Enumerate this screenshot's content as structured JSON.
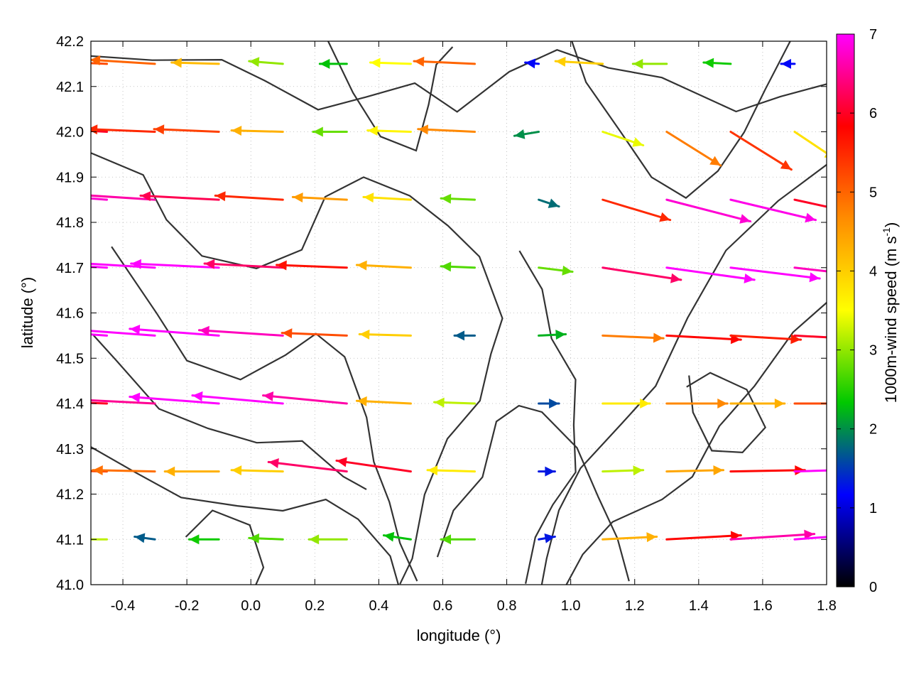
{
  "chart_data": {
    "type": "quiver",
    "xlabel": "longitude (°)",
    "ylabel": "latitude (°)",
    "xlim": [
      -0.5,
      1.8
    ],
    "ylim": [
      41.0,
      42.2
    ],
    "xticks": [
      "-0.4",
      "-0.2",
      "0.0",
      "0.2",
      "0.4",
      "0.6",
      "0.8",
      "1.0",
      "1.2",
      "1.4",
      "1.6",
      "1.8"
    ],
    "xtick_values": [
      -0.4,
      -0.2,
      0.0,
      0.2,
      0.4,
      0.6,
      0.8,
      1.0,
      1.2,
      1.4,
      1.6,
      1.8
    ],
    "yticks": [
      "41.0",
      "41.1",
      "41.2",
      "41.3",
      "41.4",
      "41.5",
      "41.6",
      "41.7",
      "41.8",
      "41.9",
      "42.0",
      "42.1",
      "42.2"
    ],
    "ytick_values": [
      41.0,
      41.1,
      41.2,
      41.3,
      41.4,
      41.5,
      41.6,
      41.7,
      41.8,
      41.9,
      42.0,
      42.1,
      42.2
    ],
    "grid": true,
    "colorbar": {
      "label_main": "1000m-wind speed (m s",
      "label_sup": "-1",
      "label_close": ")",
      "range": [
        0,
        7
      ],
      "ticks": [
        "0",
        "1",
        "2",
        "3",
        "4",
        "5",
        "6",
        "7"
      ],
      "tick_values": [
        0,
        1,
        2,
        3,
        4,
        5,
        6,
        7
      ],
      "colors": [
        "#000000",
        "#0000ff",
        "#00c800",
        "#ffff00",
        "#ff8c00",
        "#ff0000",
        "#ff00ff"
      ]
    },
    "vectors": [
      {
        "lon": -0.45,
        "lat": 42.15,
        "u": -4.5,
        "v": 0.2,
        "speed": 5.2
      },
      {
        "lon": -0.3,
        "lat": 42.15,
        "u": -4.8,
        "v": 0.3,
        "speed": 5.0
      },
      {
        "lon": -0.1,
        "lat": 42.15,
        "u": -3.5,
        "v": 0.1,
        "speed": 4.2
      },
      {
        "lon": 0.1,
        "lat": 42.15,
        "u": -2.5,
        "v": 0.2,
        "speed": 3.0
      },
      {
        "lon": 0.3,
        "lat": 42.15,
        "u": -2.0,
        "v": 0.0,
        "speed": 2.3
      },
      {
        "lon": 0.5,
        "lat": 42.15,
        "u": -3.0,
        "v": 0.1,
        "speed": 3.5
      },
      {
        "lon": 0.7,
        "lat": 42.15,
        "u": -4.5,
        "v": 0.2,
        "speed": 5.0
      },
      {
        "lon": 0.9,
        "lat": 42.15,
        "u": -1.0,
        "v": 0.1,
        "speed": 1.2
      },
      {
        "lon": 1.1,
        "lat": 42.15,
        "u": -3.5,
        "v": 0.2,
        "speed": 4.0
      },
      {
        "lon": 1.3,
        "lat": 42.15,
        "u": -2.5,
        "v": 0.0,
        "speed": 3.0
      },
      {
        "lon": 1.5,
        "lat": 42.15,
        "u": -2.0,
        "v": 0.1,
        "speed": 2.4
      },
      {
        "lon": 1.7,
        "lat": 42.15,
        "u": -1.0,
        "v": 0.0,
        "speed": 1.2
      },
      {
        "lon": -0.45,
        "lat": 42.0,
        "u": -5.5,
        "v": 0.3,
        "speed": 6.0
      },
      {
        "lon": -0.3,
        "lat": 42.0,
        "u": -5.0,
        "v": 0.2,
        "speed": 5.5
      },
      {
        "lon": -0.1,
        "lat": 42.0,
        "u": -4.8,
        "v": 0.2,
        "speed": 5.3
      },
      {
        "lon": 0.1,
        "lat": 42.0,
        "u": -3.8,
        "v": 0.1,
        "speed": 4.3
      },
      {
        "lon": 0.3,
        "lat": 42.0,
        "u": -2.5,
        "v": 0.0,
        "speed": 2.8
      },
      {
        "lon": 0.5,
        "lat": 42.0,
        "u": -3.2,
        "v": 0.1,
        "speed": 3.6
      },
      {
        "lon": 0.7,
        "lat": 42.0,
        "u": -4.2,
        "v": 0.2,
        "speed": 4.7
      },
      {
        "lon": 0.9,
        "lat": 42.0,
        "u": -1.8,
        "v": -0.3,
        "speed": 2.0
      },
      {
        "lon": 1.1,
        "lat": 42.0,
        "u": 3.0,
        "v": -1.0,
        "speed": 3.4
      },
      {
        "lon": 1.3,
        "lat": 42.0,
        "u": 4.0,
        "v": -2.5,
        "speed": 4.8
      },
      {
        "lon": 1.5,
        "lat": 42.0,
        "u": 4.5,
        "v": -2.8,
        "speed": 5.4
      },
      {
        "lon": 1.7,
        "lat": 42.0,
        "u": 3.0,
        "v": -2.0,
        "speed": 3.8
      },
      {
        "lon": -0.45,
        "lat": 41.85,
        "u": -6.5,
        "v": 0.5,
        "speed": 6.8
      },
      {
        "lon": -0.3,
        "lat": 41.85,
        "u": -6.2,
        "v": 0.4,
        "speed": 6.6
      },
      {
        "lon": -0.1,
        "lat": 41.85,
        "u": -5.8,
        "v": 0.3,
        "speed": 6.2
      },
      {
        "lon": 0.1,
        "lat": 41.85,
        "u": -5.0,
        "v": 0.3,
        "speed": 5.5
      },
      {
        "lon": 0.3,
        "lat": 41.85,
        "u": -4.0,
        "v": 0.2,
        "speed": 4.5
      },
      {
        "lon": 0.5,
        "lat": 41.85,
        "u": -3.5,
        "v": 0.2,
        "speed": 3.8
      },
      {
        "lon": 0.7,
        "lat": 41.85,
        "u": -2.5,
        "v": 0.1,
        "speed": 2.8
      },
      {
        "lon": 0.9,
        "lat": 41.85,
        "u": 1.5,
        "v": -0.5,
        "speed": 1.8
      },
      {
        "lon": 1.1,
        "lat": 41.85,
        "u": 5.0,
        "v": -1.5,
        "speed": 5.5
      },
      {
        "lon": 1.3,
        "lat": 41.85,
        "u": 6.2,
        "v": -1.6,
        "speed": 6.8
      },
      {
        "lon": 1.5,
        "lat": 41.85,
        "u": 6.3,
        "v": -1.5,
        "speed": 6.9
      },
      {
        "lon": 1.7,
        "lat": 41.85,
        "u": 5.5,
        "v": -1.2,
        "speed": 6.0
      },
      {
        "lon": -0.45,
        "lat": 41.7,
        "u": -6.8,
        "v": 0.4,
        "speed": 7.0
      },
      {
        "lon": -0.3,
        "lat": 41.7,
        "u": -6.7,
        "v": 0.4,
        "speed": 7.0
      },
      {
        "lon": -0.1,
        "lat": 41.7,
        "u": -6.5,
        "v": 0.3,
        "speed": 7.0
      },
      {
        "lon": 0.1,
        "lat": 41.7,
        "u": -5.8,
        "v": 0.3,
        "speed": 6.3
      },
      {
        "lon": 0.3,
        "lat": 41.7,
        "u": -5.2,
        "v": 0.2,
        "speed": 5.7
      },
      {
        "lon": 0.5,
        "lat": 41.7,
        "u": -4.0,
        "v": 0.2,
        "speed": 4.3
      },
      {
        "lon": 0.7,
        "lat": 41.7,
        "u": -2.5,
        "v": 0.1,
        "speed": 2.7
      },
      {
        "lon": 0.9,
        "lat": 41.7,
        "u": 2.5,
        "v": -0.3,
        "speed": 2.8
      },
      {
        "lon": 1.1,
        "lat": 41.7,
        "u": 5.8,
        "v": -0.9,
        "speed": 6.3
      },
      {
        "lon": 1.3,
        "lat": 41.7,
        "u": 6.5,
        "v": -0.9,
        "speed": 7.0
      },
      {
        "lon": 1.5,
        "lat": 41.7,
        "u": 6.6,
        "v": -0.8,
        "speed": 7.0
      },
      {
        "lon": 1.7,
        "lat": 41.7,
        "u": 6.2,
        "v": -0.7,
        "speed": 6.7
      },
      {
        "lon": -0.45,
        "lat": 41.55,
        "u": -6.8,
        "v": 0.5,
        "speed": 7.0
      },
      {
        "lon": -0.3,
        "lat": 41.55,
        "u": -6.8,
        "v": 0.5,
        "speed": 7.0
      },
      {
        "lon": -0.1,
        "lat": 41.55,
        "u": -6.6,
        "v": 0.5,
        "speed": 7.0
      },
      {
        "lon": 0.1,
        "lat": 41.55,
        "u": -6.2,
        "v": 0.4,
        "speed": 6.7
      },
      {
        "lon": 0.3,
        "lat": 41.55,
        "u": -4.8,
        "v": 0.2,
        "speed": 5.2
      },
      {
        "lon": 0.5,
        "lat": 41.55,
        "u": -3.8,
        "v": 0.1,
        "speed": 4.0
      },
      {
        "lon": 0.7,
        "lat": 41.55,
        "u": -1.5,
        "v": 0.0,
        "speed": 1.7
      },
      {
        "lon": 0.9,
        "lat": 41.55,
        "u": 2.0,
        "v": 0.1,
        "speed": 2.2
      },
      {
        "lon": 1.1,
        "lat": 41.55,
        "u": 4.5,
        "v": -0.2,
        "speed": 4.8
      },
      {
        "lon": 1.3,
        "lat": 41.55,
        "u": 5.5,
        "v": -0.3,
        "speed": 5.8
      },
      {
        "lon": 1.5,
        "lat": 41.55,
        "u": 5.2,
        "v": -0.3,
        "speed": 5.6
      },
      {
        "lon": 1.7,
        "lat": 41.55,
        "u": 5.6,
        "v": -0.3,
        "speed": 6.0
      },
      {
        "lon": -0.45,
        "lat": 41.4,
        "u": -5.5,
        "v": 0.2,
        "speed": 6.0
      },
      {
        "lon": -0.3,
        "lat": 41.4,
        "u": -6.0,
        "v": 0.3,
        "speed": 6.5
      },
      {
        "lon": -0.1,
        "lat": 41.4,
        "u": -6.6,
        "v": 0.5,
        "speed": 7.0
      },
      {
        "lon": 0.1,
        "lat": 41.4,
        "u": -6.7,
        "v": 0.6,
        "speed": 7.0
      },
      {
        "lon": 0.3,
        "lat": 41.4,
        "u": -6.2,
        "v": 0.6,
        "speed": 6.6
      },
      {
        "lon": 0.5,
        "lat": 41.4,
        "u": -4.0,
        "v": 0.2,
        "speed": 4.3
      },
      {
        "lon": 0.7,
        "lat": 41.4,
        "u": -3.0,
        "v": 0.1,
        "speed": 3.2
      },
      {
        "lon": 0.9,
        "lat": 41.4,
        "u": 1.5,
        "v": 0.0,
        "speed": 1.6
      },
      {
        "lon": 1.1,
        "lat": 41.4,
        "u": 3.5,
        "v": 0.0,
        "speed": 3.7
      },
      {
        "lon": 1.3,
        "lat": 41.4,
        "u": 4.5,
        "v": 0.0,
        "speed": 4.7
      },
      {
        "lon": 1.5,
        "lat": 41.4,
        "u": 4.0,
        "v": 0.0,
        "speed": 4.3
      },
      {
        "lon": 1.7,
        "lat": 41.4,
        "u": 4.8,
        "v": 0.0,
        "speed": 5.2
      },
      {
        "lon": -0.45,
        "lat": 41.25,
        "u": -5.0,
        "v": 0.1,
        "speed": 5.3
      },
      {
        "lon": -0.3,
        "lat": 41.25,
        "u": -4.6,
        "v": 0.1,
        "speed": 4.9
      },
      {
        "lon": -0.1,
        "lat": 41.25,
        "u": -4.0,
        "v": 0.0,
        "speed": 4.3
      },
      {
        "lon": 0.1,
        "lat": 41.25,
        "u": -3.8,
        "v": 0.1,
        "speed": 4.0
      },
      {
        "lon": 0.3,
        "lat": 41.25,
        "u": -5.8,
        "v": 0.7,
        "speed": 6.3
      },
      {
        "lon": 0.5,
        "lat": 41.25,
        "u": -5.5,
        "v": 0.8,
        "speed": 6.0
      },
      {
        "lon": 0.7,
        "lat": 41.25,
        "u": -3.5,
        "v": 0.1,
        "speed": 3.7
      },
      {
        "lon": 0.9,
        "lat": 41.25,
        "u": 1.2,
        "v": 0.0,
        "speed": 1.3
      },
      {
        "lon": 1.1,
        "lat": 41.25,
        "u": 3.0,
        "v": 0.1,
        "speed": 3.2
      },
      {
        "lon": 1.3,
        "lat": 41.25,
        "u": 4.2,
        "v": 0.1,
        "speed": 4.4
      },
      {
        "lon": 1.5,
        "lat": 41.25,
        "u": 5.5,
        "v": 0.1,
        "speed": 5.8
      },
      {
        "lon": 1.7,
        "lat": 41.25,
        "u": 6.5,
        "v": 0.2,
        "speed": 7.0
      },
      {
        "lon": -0.45,
        "lat": 41.1,
        "u": -3.0,
        "v": 0.0,
        "speed": 3.2
      },
      {
        "lon": -0.3,
        "lat": 41.1,
        "u": -1.5,
        "v": 0.2,
        "speed": 1.7
      },
      {
        "lon": -0.1,
        "lat": 41.1,
        "u": -2.2,
        "v": 0.0,
        "speed": 2.4
      },
      {
        "lon": 0.1,
        "lat": 41.1,
        "u": -2.5,
        "v": 0.1,
        "speed": 2.7
      },
      {
        "lon": 0.3,
        "lat": 41.1,
        "u": -2.8,
        "v": 0.0,
        "speed": 3.0
      },
      {
        "lon": 0.5,
        "lat": 41.1,
        "u": -2.0,
        "v": 0.3,
        "speed": 2.3
      },
      {
        "lon": 0.7,
        "lat": 41.1,
        "u": -2.5,
        "v": 0.0,
        "speed": 2.7
      },
      {
        "lon": 0.9,
        "lat": 41.1,
        "u": 1.2,
        "v": 0.2,
        "speed": 1.3
      },
      {
        "lon": 1.1,
        "lat": 41.1,
        "u": 4.0,
        "v": 0.2,
        "speed": 4.3
      },
      {
        "lon": 1.3,
        "lat": 41.1,
        "u": 5.5,
        "v": 0.3,
        "speed": 5.8
      },
      {
        "lon": 1.5,
        "lat": 41.1,
        "u": 6.2,
        "v": 0.4,
        "speed": 6.6
      },
      {
        "lon": 1.7,
        "lat": 41.1,
        "u": 6.6,
        "v": 0.5,
        "speed": 7.0
      }
    ]
  }
}
